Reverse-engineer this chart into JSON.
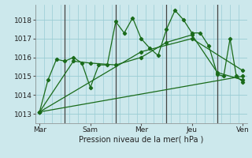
{
  "title": "",
  "xlabel": "Pression niveau de la mer( hPa )",
  "background_color": "#cce8ec",
  "grid_color": "#99ccd4",
  "line_color": "#1a6b1a",
  "dark_line_color": "#2a5a2a",
  "ylim": [
    1012.5,
    1018.8
  ],
  "xlim": [
    0,
    100
  ],
  "day_ticks": [
    2,
    26,
    50,
    74,
    98
  ],
  "day_labels": [
    "Mar",
    "Sam",
    "Mer",
    "Jeu",
    "Ven"
  ],
  "day_vlines": [
    14,
    38,
    62,
    86
  ],
  "yticks": [
    1013,
    1014,
    1015,
    1016,
    1017,
    1018
  ],
  "series": [
    [
      2,
      1013.1,
      6,
      1014.8,
      10,
      1015.9,
      14,
      1015.8,
      18,
      1016.0,
      22,
      1015.7,
      26,
      1014.4,
      30,
      1015.6,
      34,
      1015.6,
      38,
      1017.9,
      42,
      1017.3,
      46,
      1018.1,
      50,
      1017.0,
      54,
      1016.5,
      58,
      1016.1,
      62,
      1017.5,
      66,
      1018.5,
      70,
      1018.0,
      74,
      1017.3,
      78,
      1017.3,
      82,
      1016.6,
      86,
      1015.1,
      89,
      1015.0,
      92,
      1017.0,
      95,
      1015.0,
      98,
      1014.7
    ],
    [
      2,
      1013.1,
      18,
      1015.8,
      26,
      1015.7,
      38,
      1015.6,
      50,
      1016.0,
      62,
      1016.8,
      74,
      1017.2,
      86,
      1015.2,
      98,
      1014.8
    ],
    [
      2,
      1013.1,
      98,
      1015.0
    ],
    [
      2,
      1013.1,
      50,
      1016.3,
      74,
      1017.0,
      98,
      1015.3
    ]
  ]
}
